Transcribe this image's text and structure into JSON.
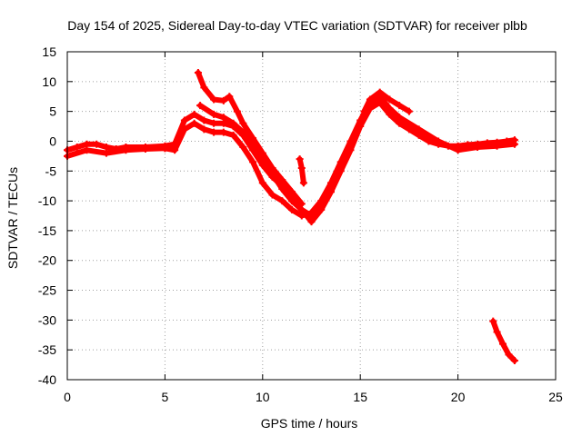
{
  "chart_data": {
    "type": "scatter",
    "title": "Day 154 of 2025, Sidereal Day-to-day VTEC variation (SDTVAR) for receiver plbb",
    "xlabel": "GPS time / hours",
    "ylabel": "SDTVAR / TECUs",
    "xlim": [
      0,
      25
    ],
    "ylim": [
      -40,
      15
    ],
    "grid": true,
    "legend": "none",
    "x_ticks": [
      "0",
      "5",
      "10",
      "15",
      "20",
      "25"
    ],
    "y_ticks": [
      "15",
      "10",
      "5",
      "0",
      "-5",
      "-10",
      "-15",
      "-20",
      "-25",
      "-30",
      "-35",
      "-40"
    ],
    "series": [
      {
        "name": "track-1",
        "color": "#ff0000",
        "x": [
          0,
          0.5,
          1,
          1.5,
          2,
          2.5,
          3,
          4,
          5,
          5.5,
          6,
          6.5,
          7,
          7.5,
          8,
          8.5,
          9,
          9.5,
          10,
          10.5,
          11,
          11.5,
          12,
          12.5,
          13,
          13.5,
          14,
          14.5,
          15,
          15.5,
          16,
          16.5,
          17,
          17.5,
          18,
          18.5,
          19,
          19.5,
          20,
          20.5,
          21,
          21.5,
          22,
          22.5,
          22.9
        ],
        "y": [
          -1.5,
          -1.0,
          -0.5,
          -0.5,
          -1.0,
          -1.3,
          -1.0,
          -1.0,
          -0.8,
          -0.5,
          3.5,
          4.5,
          3.5,
          3.0,
          3.0,
          2.5,
          1.0,
          -1.5,
          -4.0,
          -6.0,
          -7.5,
          -9.5,
          -11.5,
          -13.5,
          -11.5,
          -8.5,
          -5.0,
          -1.5,
          2.5,
          5.5,
          6.5,
          4.5,
          3.0,
          2.0,
          1.0,
          0.0,
          -0.5,
          -0.8,
          -0.8,
          -0.6,
          -0.5,
          -0.3,
          -0.2,
          0.0,
          0.2
        ]
      },
      {
        "name": "track-2",
        "color": "#ff0000",
        "x": [
          0,
          1,
          2,
          3,
          4,
          5,
          5.5,
          6,
          6.5,
          7,
          7.5,
          8,
          8.5,
          9,
          9.5,
          10,
          10.5,
          11,
          11.5,
          12,
          12.5,
          13,
          13.5,
          14,
          14.5,
          15,
          15.5,
          16,
          16.5,
          17,
          18,
          19,
          20,
          21,
          22,
          22.9
        ],
        "y": [
          -2.5,
          -1.5,
          -2.0,
          -1.5,
          -1.3,
          -1.2,
          -1.5,
          2.0,
          3.0,
          2.0,
          1.5,
          1.5,
          1.0,
          -1.0,
          -3.5,
          -7.0,
          -9.0,
          -10.0,
          -11.5,
          -12.5,
          -12.0,
          -10.0,
          -7.0,
          -3.5,
          0.0,
          3.5,
          6.5,
          7.5,
          5.5,
          4.0,
          2.0,
          0.0,
          -1.5,
          -1.0,
          -0.8,
          -0.5
        ]
      },
      {
        "name": "track-3",
        "color": "#ff0000",
        "x": [
          6.7,
          7.0,
          7.5,
          8.0,
          8.3,
          8.7,
          9.0,
          9.5,
          10.0,
          10.5,
          11.0,
          11.5,
          12.0
        ],
        "y": [
          11.5,
          9.0,
          7.0,
          6.8,
          7.5,
          5.0,
          3.0,
          0.5,
          -2.0,
          -4.5,
          -6.5,
          -8.5,
          -10.5
        ]
      },
      {
        "name": "track-4",
        "color": "#ff0000",
        "x": [
          6.8,
          7.5,
          8.0,
          8.5,
          9.0,
          9.5,
          10.0,
          10.5,
          11.0,
          11.5,
          12.0,
          12.5,
          13.0
        ],
        "y": [
          6.0,
          4.5,
          4.0,
          3.0,
          1.5,
          -1.0,
          -3.5,
          -5.5,
          -8.0,
          -10.0,
          -11.5,
          -12.5,
          -10.5
        ]
      },
      {
        "name": "track-5",
        "color": "#ff0000",
        "x": [
          15.2,
          15.5,
          16.0,
          16.5,
          17.0,
          17.5
        ],
        "y": [
          5.0,
          7.0,
          8.2,
          7.0,
          6.0,
          5.0
        ]
      },
      {
        "name": "track-6",
        "color": "#ff0000",
        "x": [
          11.9,
          12.0,
          12.1
        ],
        "y": [
          -3.0,
          -4.5,
          -7.0
        ]
      },
      {
        "name": "track-7",
        "color": "#ff0000",
        "x": [
          21.8,
          22.0,
          22.3,
          22.6,
          22.9
        ],
        "y": [
          -30.2,
          -32.0,
          -34.0,
          -35.8,
          -36.8
        ]
      }
    ]
  }
}
